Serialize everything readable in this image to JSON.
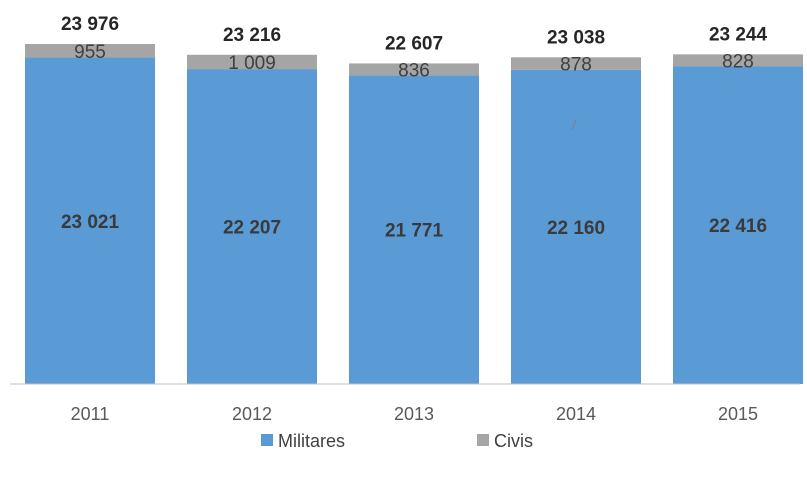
{
  "colors": {
    "militares": "#5b9bd5",
    "civis": "#a5a5a5",
    "axis": "#bfbfbf"
  },
  "chart_data": {
    "type": "bar",
    "stacked": true,
    "categories": [
      "2011",
      "2012",
      "2013",
      "2014",
      "2015"
    ],
    "series": [
      {
        "name": "Militares",
        "values": [
          23021,
          22207,
          21771,
          22160,
          22416
        ],
        "labels": [
          "23 021",
          "22 207",
          "21 771",
          "22 160",
          "22 416"
        ]
      },
      {
        "name": "Civis",
        "values": [
          955,
          1009,
          836,
          878,
          828
        ],
        "labels": [
          "955",
          "1 009",
          "836",
          "878",
          "828"
        ]
      }
    ],
    "totals": [
      23976,
      23216,
      22607,
      23038,
      23244
    ],
    "total_labels": [
      "23 976",
      "23 216",
      "22 607",
      "23 038",
      "23 244"
    ],
    "grid": false,
    "legend": "bottom"
  }
}
